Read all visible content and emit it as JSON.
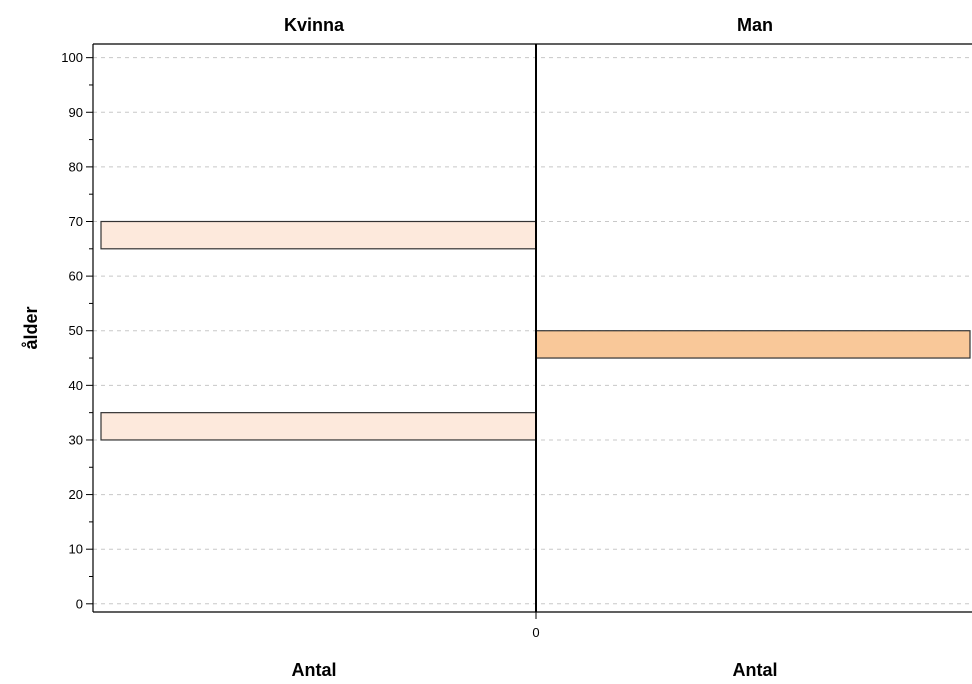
{
  "chart_data": {
    "type": "bar",
    "orientation": "horizontal",
    "layout": "population-pyramid",
    "panels": [
      {
        "title": "Kvinna",
        "x_label": "Antal",
        "color": "#FDE9DC",
        "bars": [
          {
            "age_from": 30,
            "age_to": 35,
            "count": 1
          },
          {
            "age_from": 65,
            "age_to": 70,
            "count": 1
          }
        ]
      },
      {
        "title": "Man",
        "x_label": "Antal",
        "color": "#F9C899",
        "bars": [
          {
            "age_from": 45,
            "age_to": 50,
            "count": 1
          }
        ]
      }
    ],
    "y_label": "ålder",
    "y_ticks": [
      0,
      10,
      20,
      30,
      40,
      50,
      60,
      70,
      80,
      90,
      100
    ],
    "x_tick_label": "0",
    "x_max": 1,
    "ylim": [
      -1.5,
      102.5
    ],
    "grid": true,
    "bar_edge_color": "#333333"
  }
}
